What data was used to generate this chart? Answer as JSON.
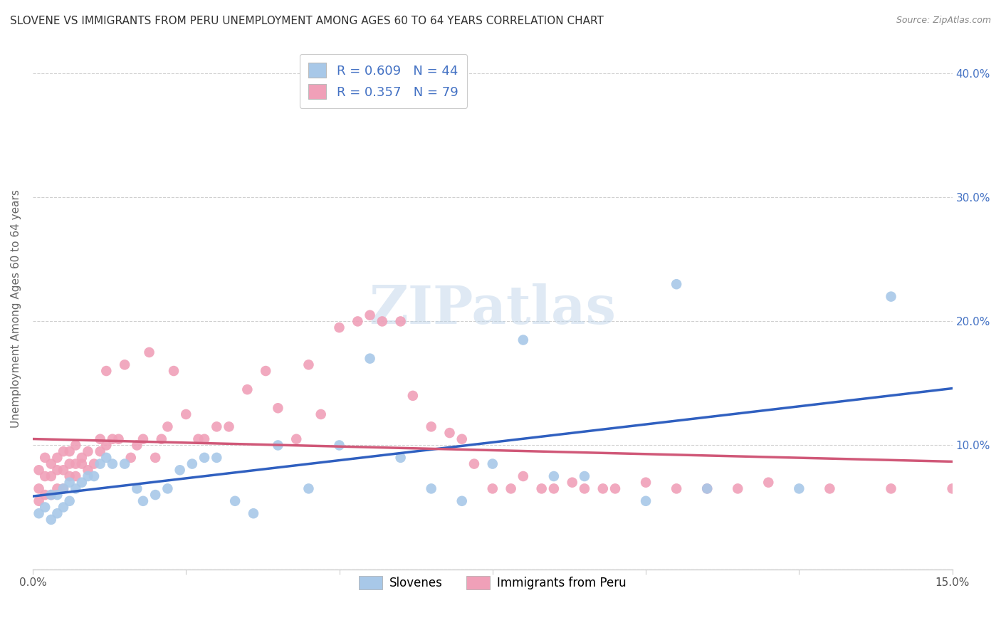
{
  "title": "SLOVENE VS IMMIGRANTS FROM PERU UNEMPLOYMENT AMONG AGES 60 TO 64 YEARS CORRELATION CHART",
  "source": "Source: ZipAtlas.com",
  "ylabel": "Unemployment Among Ages 60 to 64 years",
  "xlim": [
    0.0,
    0.15
  ],
  "ylim": [
    0.0,
    0.42
  ],
  "grid_color": "#d0d0d0",
  "background_color": "#ffffff",
  "slovene_color": "#a8c8e8",
  "peru_color": "#f0a0b8",
  "slovene_line_color": "#3060c0",
  "peru_line_color": "#d05878",
  "R_slovene": 0.609,
  "N_slovene": 44,
  "R_peru": 0.357,
  "N_peru": 79,
  "legend_label_slovene": "Slovenes",
  "legend_label_peru": "Immigrants from Peru",
  "watermark": "ZIPatlas",
  "slovene_x": [
    0.001,
    0.002,
    0.003,
    0.003,
    0.004,
    0.004,
    0.005,
    0.005,
    0.006,
    0.006,
    0.007,
    0.008,
    0.009,
    0.01,
    0.011,
    0.012,
    0.013,
    0.015,
    0.017,
    0.018,
    0.02,
    0.022,
    0.024,
    0.026,
    0.028,
    0.03,
    0.033,
    0.036,
    0.04,
    0.045,
    0.05,
    0.055,
    0.06,
    0.065,
    0.07,
    0.075,
    0.08,
    0.085,
    0.09,
    0.1,
    0.105,
    0.11,
    0.125,
    0.14
  ],
  "slovene_y": [
    0.045,
    0.05,
    0.04,
    0.06,
    0.045,
    0.06,
    0.05,
    0.065,
    0.055,
    0.07,
    0.065,
    0.07,
    0.075,
    0.075,
    0.085,
    0.09,
    0.085,
    0.085,
    0.065,
    0.055,
    0.06,
    0.065,
    0.08,
    0.085,
    0.09,
    0.09,
    0.055,
    0.045,
    0.1,
    0.065,
    0.1,
    0.17,
    0.09,
    0.065,
    0.055,
    0.085,
    0.185,
    0.075,
    0.075,
    0.055,
    0.23,
    0.065,
    0.065,
    0.22
  ],
  "peru_x": [
    0.001,
    0.001,
    0.001,
    0.002,
    0.002,
    0.002,
    0.003,
    0.003,
    0.003,
    0.004,
    0.004,
    0.004,
    0.005,
    0.005,
    0.005,
    0.006,
    0.006,
    0.006,
    0.007,
    0.007,
    0.007,
    0.008,
    0.008,
    0.009,
    0.009,
    0.01,
    0.011,
    0.011,
    0.012,
    0.012,
    0.013,
    0.014,
    0.015,
    0.016,
    0.017,
    0.018,
    0.019,
    0.02,
    0.021,
    0.022,
    0.023,
    0.025,
    0.027,
    0.028,
    0.03,
    0.032,
    0.035,
    0.038,
    0.04,
    0.043,
    0.045,
    0.047,
    0.05,
    0.053,
    0.055,
    0.057,
    0.06,
    0.062,
    0.065,
    0.068,
    0.07,
    0.072,
    0.075,
    0.078,
    0.08,
    0.083,
    0.085,
    0.088,
    0.09,
    0.093,
    0.095,
    0.1,
    0.105,
    0.11,
    0.115,
    0.12,
    0.13,
    0.14,
    0.15
  ],
  "peru_y": [
    0.055,
    0.065,
    0.08,
    0.06,
    0.075,
    0.09,
    0.06,
    0.075,
    0.085,
    0.065,
    0.08,
    0.09,
    0.065,
    0.08,
    0.095,
    0.075,
    0.085,
    0.095,
    0.075,
    0.085,
    0.1,
    0.085,
    0.09,
    0.08,
    0.095,
    0.085,
    0.095,
    0.105,
    0.1,
    0.16,
    0.105,
    0.105,
    0.165,
    0.09,
    0.1,
    0.105,
    0.175,
    0.09,
    0.105,
    0.115,
    0.16,
    0.125,
    0.105,
    0.105,
    0.115,
    0.115,
    0.145,
    0.16,
    0.13,
    0.105,
    0.165,
    0.125,
    0.195,
    0.2,
    0.205,
    0.2,
    0.2,
    0.14,
    0.115,
    0.11,
    0.105,
    0.085,
    0.065,
    0.065,
    0.075,
    0.065,
    0.065,
    0.07,
    0.065,
    0.065,
    0.065,
    0.07,
    0.065,
    0.065,
    0.065,
    0.07,
    0.065,
    0.065,
    0.065
  ]
}
